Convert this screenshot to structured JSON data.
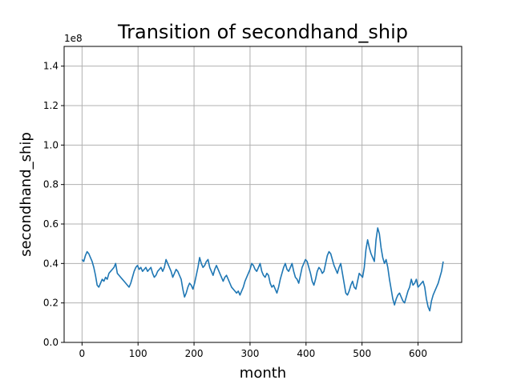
{
  "chart_data": {
    "type": "line",
    "title": "Transition of secondhand_ship",
    "xlabel": "month",
    "ylabel": "secondhand_ship",
    "offset_label": "1e8",
    "xlim": [
      -32,
      678
    ],
    "ylim": [
      0,
      150000000
    ],
    "x_ticks": [
      0,
      100,
      200,
      300,
      400,
      500,
      600
    ],
    "y_ticks": [
      0,
      20000000,
      40000000,
      60000000,
      80000000,
      100000000,
      120000000,
      140000000
    ],
    "y_tick_labels": [
      "0.0",
      "0.2",
      "0.4",
      "0.6",
      "0.8",
      "1.0",
      "1.2",
      "1.4"
    ],
    "grid": true,
    "color": "#1f77b4",
    "series": [
      {
        "x": [
          0,
          3,
          6,
          9,
          12,
          15,
          18,
          21,
          24,
          27,
          30,
          33,
          36,
          39,
          42,
          45,
          48,
          51,
          54,
          57,
          60,
          63,
          66,
          69,
          72,
          75,
          78,
          81,
          84,
          87,
          90,
          93,
          96,
          99,
          102,
          105,
          108,
          111,
          114,
          117,
          120,
          123,
          126,
          129,
          132,
          135,
          138,
          141,
          144,
          147,
          150,
          153,
          156,
          159,
          162,
          165,
          168,
          171,
          174,
          177,
          180,
          183,
          186,
          189,
          192,
          195,
          198,
          201,
          204,
          207,
          210,
          213,
          216,
          219,
          222,
          225,
          228,
          231,
          234,
          237,
          240,
          243,
          246,
          249,
          252,
          255,
          258,
          261,
          264,
          267,
          270,
          273,
          276,
          279,
          282,
          285,
          288,
          291,
          294,
          297,
          300,
          303,
          306,
          309,
          312,
          315,
          318,
          321,
          324,
          327,
          330,
          333,
          336,
          339,
          342,
          345,
          348,
          351,
          354,
          357,
          360,
          363,
          366,
          369,
          372,
          375,
          378,
          381,
          384,
          387,
          390,
          393,
          396,
          399,
          402,
          405,
          408,
          411,
          414,
          417,
          420,
          423,
          426,
          429,
          432,
          435,
          438,
          441,
          444,
          447,
          450,
          453,
          456,
          459,
          462,
          465,
          468,
          471,
          474,
          477,
          480,
          483,
          486,
          489,
          492,
          495,
          498,
          501,
          504,
          507,
          510,
          513,
          516,
          519,
          522,
          525,
          528,
          531,
          534,
          537,
          540,
          543,
          546,
          549,
          552,
          555,
          558,
          561,
          564,
          567,
          570,
          573,
          576,
          579,
          582,
          585,
          588,
          591,
          594,
          597,
          600,
          603,
          606,
          609,
          612,
          615,
          618,
          621,
          624,
          627,
          630,
          633,
          636,
          639,
          642,
          645
        ],
        "y": [
          42000000,
          41000000,
          44000000,
          46000000,
          45000000,
          43000000,
          41000000,
          38000000,
          34000000,
          29000000,
          28000000,
          30000000,
          32000000,
          31000000,
          33000000,
          32000000,
          35000000,
          36000000,
          37000000,
          38000000,
          40000000,
          35000000,
          34000000,
          33000000,
          32000000,
          31000000,
          30000000,
          29000000,
          28000000,
          30000000,
          33000000,
          36000000,
          38000000,
          39000000,
          37000000,
          38000000,
          36000000,
          37000000,
          38000000,
          36000000,
          37000000,
          38000000,
          35000000,
          33000000,
          34000000,
          36000000,
          37000000,
          38000000,
          36000000,
          38000000,
          42000000,
          40000000,
          38000000,
          36000000,
          33000000,
          35000000,
          37000000,
          36000000,
          34000000,
          32000000,
          27000000,
          23000000,
          25000000,
          28000000,
          30000000,
          29000000,
          27000000,
          30000000,
          34000000,
          38000000,
          43000000,
          40000000,
          38000000,
          39000000,
          41000000,
          42000000,
          38000000,
          36000000,
          34000000,
          37000000,
          39000000,
          37000000,
          35000000,
          33000000,
          31000000,
          33000000,
          34000000,
          32000000,
          30000000,
          28000000,
          27000000,
          26000000,
          25000000,
          26000000,
          24000000,
          26000000,
          28000000,
          31000000,
          33000000,
          35000000,
          37000000,
          40000000,
          39000000,
          37000000,
          36000000,
          38000000,
          40000000,
          36000000,
          34000000,
          33000000,
          35000000,
          34000000,
          30000000,
          28000000,
          29000000,
          27000000,
          25000000,
          28000000,
          32000000,
          35000000,
          38000000,
          40000000,
          37000000,
          36000000,
          38000000,
          40000000,
          36000000,
          33000000,
          32000000,
          30000000,
          34000000,
          38000000,
          40000000,
          42000000,
          41000000,
          38000000,
          35000000,
          31000000,
          29000000,
          32000000,
          36000000,
          38000000,
          37000000,
          35000000,
          36000000,
          40000000,
          44000000,
          46000000,
          45000000,
          42000000,
          39000000,
          37000000,
          35000000,
          38000000,
          40000000,
          35000000,
          30000000,
          25000000,
          24000000,
          26000000,
          29000000,
          31000000,
          28000000,
          27000000,
          31000000,
          35000000,
          34000000,
          33000000,
          38000000,
          47000000,
          52000000,
          48000000,
          45000000,
          43000000,
          41000000,
          52000000,
          58000000,
          55000000,
          48000000,
          43000000,
          40000000,
          42000000,
          38000000,
          32000000,
          27000000,
          22000000,
          19000000,
          22000000,
          24000000,
          25000000,
          23000000,
          21000000,
          20000000,
          23000000,
          26000000,
          28000000,
          32000000,
          29000000,
          30000000,
          32000000,
          28000000,
          29000000,
          30000000,
          31000000,
          28000000,
          22000000,
          18000000,
          16000000,
          21000000,
          24000000,
          26000000,
          28000000,
          30000000,
          33000000,
          36000000,
          41000000
        ]
      }
    ]
  }
}
